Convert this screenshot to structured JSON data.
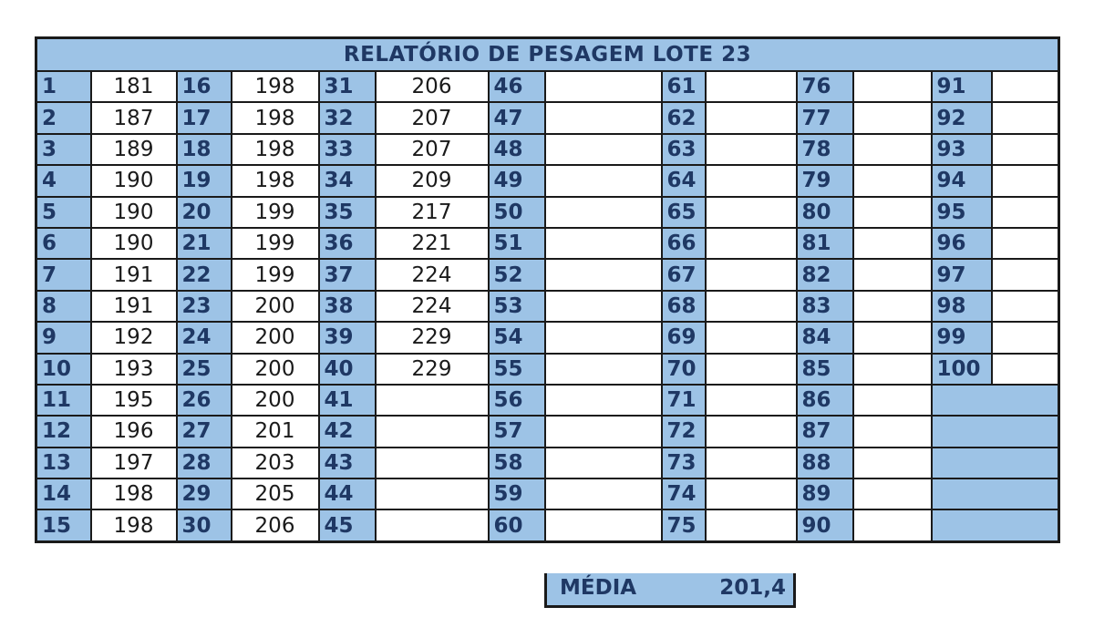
{
  "title": "RELATÓRIO DE PESAGEM LOTE 23",
  "groups": [
    {
      "start": 1,
      "values": [
        "181",
        "187",
        "189",
        "190",
        "190",
        "190",
        "191",
        "191",
        "192",
        "193",
        "195",
        "196",
        "197",
        "198",
        "198"
      ]
    },
    {
      "start": 16,
      "values": [
        "198",
        "198",
        "198",
        "198",
        "199",
        "199",
        "199",
        "200",
        "200",
        "200",
        "200",
        "201",
        "203",
        "205",
        "206"
      ]
    },
    {
      "start": 31,
      "values": [
        "206",
        "207",
        "207",
        "209",
        "217",
        "221",
        "224",
        "224",
        "229",
        "229",
        "",
        "",
        "",
        "",
        ""
      ]
    },
    {
      "start": 46,
      "values": [
        "",
        "",
        "",
        "",
        "",
        "",
        "",
        "",
        "",
        "",
        "",
        "",
        "",
        "",
        ""
      ]
    },
    {
      "start": 61,
      "values": [
        "",
        "",
        "",
        "",
        "",
        "",
        "",
        "",
        "",
        "",
        "",
        "",
        "",
        "",
        ""
      ]
    },
    {
      "start": 76,
      "values": [
        "",
        "",
        "",
        "",
        "",
        "",
        "",
        "",
        "",
        "",
        "",
        "",
        "",
        "",
        ""
      ]
    },
    {
      "start": 91,
      "values": [
        "",
        "",
        "",
        "",
        "",
        "",
        "",
        "",
        "",
        "",
        "",
        "",
        "",
        "",
        ""
      ],
      "count": 10
    }
  ],
  "media": {
    "label": "MÉDIA",
    "value": "201,4"
  }
}
